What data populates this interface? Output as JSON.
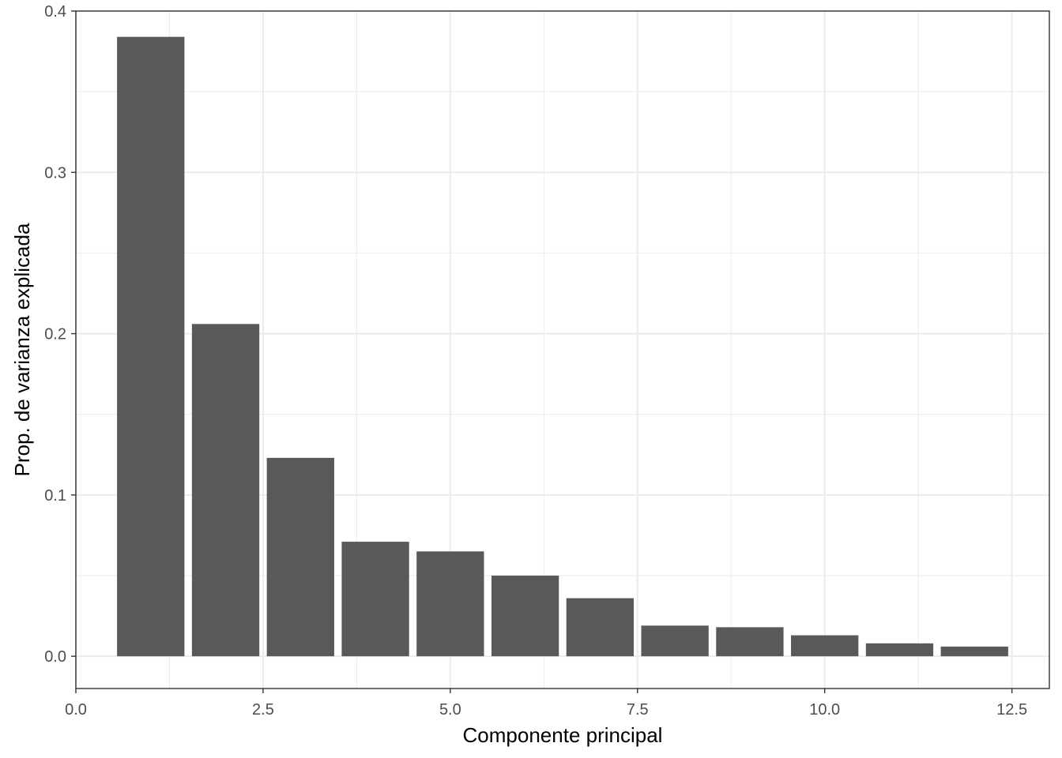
{
  "chart_data": {
    "type": "bar",
    "title": "",
    "xlabel": "Componente principal",
    "ylabel": "Prop. de varianza explicada",
    "x": [
      1,
      2,
      3,
      4,
      5,
      6,
      7,
      8,
      9,
      10,
      11,
      12
    ],
    "values": [
      0.384,
      0.206,
      0.123,
      0.071,
      0.065,
      0.05,
      0.036,
      0.019,
      0.018,
      0.013,
      0.008,
      0.006
    ],
    "xlim": [
      0,
      13
    ],
    "ylim": [
      -0.02,
      0.4
    ],
    "x_ticks": [
      "0.0",
      "2.5",
      "5.0",
      "7.5",
      "10.0",
      "12.5"
    ],
    "y_ticks": [
      "0.0",
      "0.1",
      "0.2",
      "0.3",
      "0.4"
    ],
    "grid": true,
    "bar_color": "#595959",
    "grid_color": "#ebebeb",
    "panel_border_color": "#333333"
  }
}
